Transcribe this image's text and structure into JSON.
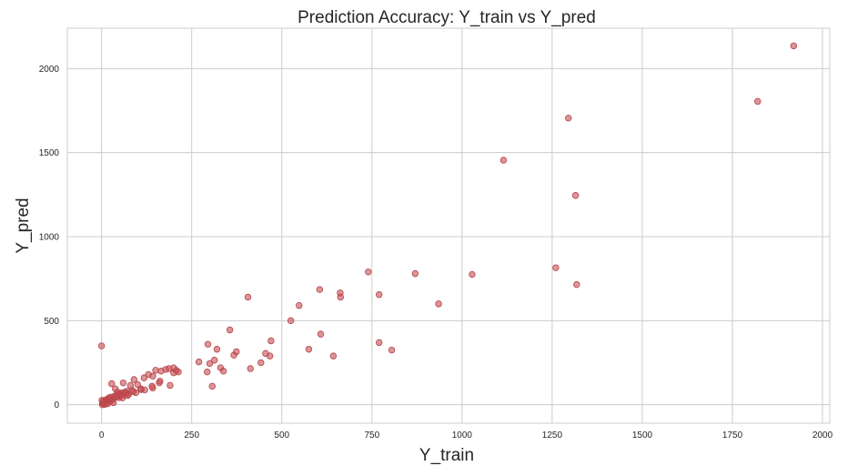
{
  "chart_data": {
    "type": "scatter",
    "title": "Prediction Accuracy: Y_train vs Y_pred",
    "xlabel": "Y_train",
    "ylabel": "Y_pred",
    "xlim": [
      -95,
      2020
    ],
    "ylim": [
      -110,
      2240
    ],
    "xticks": [
      0,
      250,
      500,
      750,
      1000,
      1250,
      1500,
      1750,
      2000
    ],
    "yticks": [
      0,
      500,
      1000,
      1500,
      2000
    ],
    "grid": true,
    "point_color": "#c44e52",
    "point_opacity": 0.6,
    "series": [
      {
        "x": [
          1920,
          1820,
          1295,
          1115,
          1315,
          1260,
          1318,
          1028,
          870,
          740,
          935,
          770,
          605,
          662,
          663,
          548,
          406,
          525,
          356,
          608,
          770,
          805,
          575,
          643,
          470,
          455,
          374,
          467,
          442,
          413,
          320,
          330,
          295,
          367,
          313,
          338,
          307,
          293,
          300,
          270,
          213,
          200,
          178,
          207,
          187,
          200,
          165,
          150,
          130,
          118,
          142,
          90,
          60,
          28,
          80,
          190,
          100,
          142,
          162,
          109,
          0,
          5,
          12,
          20,
          35,
          45,
          55,
          70,
          3,
          8,
          15,
          25,
          40,
          50,
          65,
          85,
          10,
          22,
          30,
          48,
          60,
          75,
          95,
          110,
          2,
          6,
          18,
          32,
          42,
          52,
          68,
          88,
          120,
          140,
          160,
          38,
          44,
          58,
          72,
          26,
          33,
          17,
          9,
          4,
          1
        ],
        "y": [
          2135,
          1805,
          1705,
          1455,
          1245,
          815,
          715,
          775,
          780,
          790,
          600,
          655,
          685,
          665,
          640,
          590,
          640,
          500,
          445,
          420,
          370,
          325,
          330,
          290,
          380,
          305,
          315,
          290,
          250,
          215,
          330,
          220,
          360,
          295,
          265,
          200,
          110,
          195,
          245,
          255,
          195,
          190,
          210,
          205,
          215,
          220,
          200,
          205,
          180,
          160,
          170,
          150,
          130,
          125,
          115,
          115,
          120,
          100,
          140,
          95,
          350,
          20,
          30,
          40,
          50,
          60,
          70,
          80,
          10,
          15,
          25,
          45,
          55,
          65,
          75,
          85,
          5,
          35,
          28,
          42,
          58,
          62,
          72,
          90,
          0,
          8,
          18,
          33,
          48,
          52,
          68,
          78,
          88,
          110,
          130,
          95,
          75,
          40,
          55,
          22,
          12,
          6,
          2,
          14,
          26
        ]
      }
    ]
  }
}
